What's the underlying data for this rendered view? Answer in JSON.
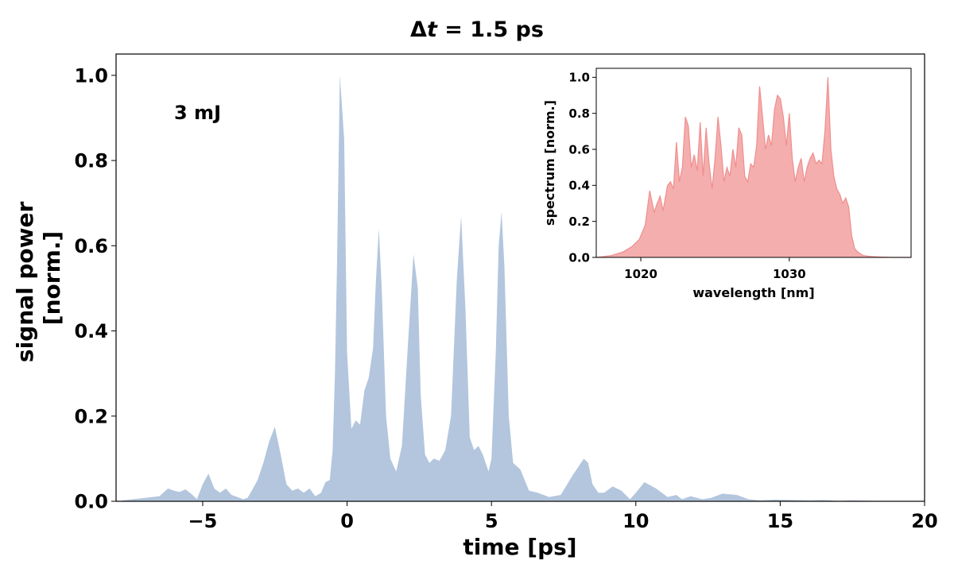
{
  "chart_data": [
    {
      "type": "area",
      "title_prefix": "Δ",
      "title_var": "t",
      "title_suffix": " = 1.5 ps",
      "xlabel": "time [ps]",
      "ylabel_line1": "signal power",
      "ylabel_line2": "[norm.]",
      "annotation": "3 mJ",
      "xlim": [
        -8,
        20
      ],
      "ylim": [
        0,
        1.05
      ],
      "xticks": [
        -5,
        0,
        5,
        10,
        15,
        20
      ],
      "xtick_labels": [
        "−5",
        "0",
        "5",
        "10",
        "15",
        "20"
      ],
      "yticks": [
        0.0,
        0.2,
        0.4,
        0.6,
        0.8,
        1.0
      ],
      "ytick_labels": [
        "0.0",
        "0.2",
        "0.4",
        "0.6",
        "0.8",
        "1.0"
      ],
      "fill_color": "#b3c6de",
      "series": [
        {
          "name": "signal power",
          "x": [
            -7.8,
            -7.0,
            -6.5,
            -6.2,
            -6.0,
            -5.8,
            -5.6,
            -5.4,
            -5.2,
            -5.0,
            -4.8,
            -4.6,
            -4.4,
            -4.2,
            -4.0,
            -3.8,
            -3.6,
            -3.45,
            -3.3,
            -3.1,
            -2.9,
            -2.7,
            -2.5,
            -2.3,
            -2.1,
            -1.9,
            -1.7,
            -1.5,
            -1.3,
            -1.1,
            -0.9,
            -0.75,
            -0.6,
            -0.5,
            -0.42,
            -0.35,
            -0.25,
            -0.1,
            0.0,
            0.15,
            0.3,
            0.45,
            0.6,
            0.75,
            0.9,
            1.0,
            1.1,
            1.2,
            1.35,
            1.5,
            1.7,
            1.9,
            2.1,
            2.3,
            2.45,
            2.55,
            2.7,
            2.85,
            3.0,
            3.2,
            3.4,
            3.6,
            3.8,
            3.95,
            4.1,
            4.25,
            4.4,
            4.55,
            4.7,
            4.9,
            5.0,
            5.15,
            5.25,
            5.35,
            5.45,
            5.6,
            5.75,
            6.0,
            6.3,
            6.6,
            7.0,
            7.4,
            7.8,
            8.0,
            8.2,
            8.35,
            8.5,
            8.7,
            8.9,
            9.2,
            9.5,
            9.8,
            10.0,
            10.3,
            10.7,
            11.1,
            11.4,
            11.6,
            11.9,
            12.3,
            12.6,
            13.0,
            13.5,
            13.9,
            14.3,
            14.8,
            15.5,
            16.0,
            16.5,
            17.0,
            17.5,
            18.3
          ],
          "y": [
            0.002,
            0.008,
            0.012,
            0.03,
            0.025,
            0.022,
            0.028,
            0.018,
            0.005,
            0.04,
            0.065,
            0.03,
            0.02,
            0.03,
            0.015,
            0.01,
            0.005,
            0.008,
            0.025,
            0.05,
            0.09,
            0.14,
            0.175,
            0.11,
            0.04,
            0.025,
            0.03,
            0.02,
            0.03,
            0.012,
            0.02,
            0.045,
            0.05,
            0.12,
            0.3,
            0.55,
            1.0,
            0.85,
            0.35,
            0.17,
            0.19,
            0.18,
            0.26,
            0.29,
            0.36,
            0.52,
            0.64,
            0.5,
            0.2,
            0.1,
            0.07,
            0.13,
            0.36,
            0.58,
            0.5,
            0.25,
            0.11,
            0.09,
            0.1,
            0.095,
            0.12,
            0.2,
            0.52,
            0.67,
            0.45,
            0.15,
            0.12,
            0.13,
            0.11,
            0.07,
            0.1,
            0.35,
            0.6,
            0.68,
            0.55,
            0.2,
            0.09,
            0.075,
            0.025,
            0.02,
            0.01,
            0.015,
            0.06,
            0.08,
            0.1,
            0.09,
            0.04,
            0.02,
            0.02,
            0.035,
            0.025,
            0.005,
            0.02,
            0.045,
            0.03,
            0.01,
            0.015,
            0.005,
            0.012,
            0.005,
            0.008,
            0.018,
            0.015,
            0.005,
            0.002,
            0.004,
            0.003,
            0.002,
            0.003,
            0.001,
            0.002,
            0.001
          ]
        }
      ]
    },
    {
      "type": "area",
      "xlabel": "wavelength [nm]",
      "ylabel": "spectrum [norm.]",
      "xlim": [
        1017,
        1038.2
      ],
      "ylim": [
        0,
        1.05
      ],
      "xticks": [
        1020,
        1030
      ],
      "xtick_labels": [
        "1020",
        "1030"
      ],
      "yticks": [
        0.0,
        0.2,
        0.4,
        0.6,
        0.8,
        1.0
      ],
      "ytick_labels": [
        "0.0",
        "0.2",
        "0.4",
        "0.6",
        "0.8",
        "1.0"
      ],
      "fill_color": "#f4aeae",
      "line_color": "#f08e8e",
      "series": [
        {
          "name": "spectrum",
          "x": [
            1017.0,
            1018.0,
            1018.8,
            1019.4,
            1019.9,
            1020.3,
            1020.6,
            1020.9,
            1021.1,
            1021.3,
            1021.5,
            1021.8,
            1022.0,
            1022.2,
            1022.4,
            1022.6,
            1022.8,
            1023.0,
            1023.2,
            1023.4,
            1023.6,
            1023.8,
            1024.0,
            1024.2,
            1024.4,
            1024.6,
            1024.8,
            1025.0,
            1025.2,
            1025.4,
            1025.6,
            1025.8,
            1026.0,
            1026.2,
            1026.4,
            1026.6,
            1026.8,
            1027.0,
            1027.2,
            1027.4,
            1027.6,
            1027.8,
            1028.0,
            1028.2,
            1028.4,
            1028.6,
            1028.8,
            1029.0,
            1029.2,
            1029.4,
            1029.6,
            1029.8,
            1030.0,
            1030.2,
            1030.4,
            1030.6,
            1030.8,
            1031.0,
            1031.2,
            1031.4,
            1031.6,
            1031.8,
            1032.0,
            1032.2,
            1032.4,
            1032.6,
            1032.8,
            1033.0,
            1033.2,
            1033.4,
            1033.6,
            1033.8,
            1034.0,
            1034.2,
            1034.4,
            1034.6,
            1034.8,
            1035.0,
            1035.5,
            1036.2,
            1037.0,
            1038.2
          ],
          "y": [
            0.0,
            0.01,
            0.03,
            0.06,
            0.1,
            0.18,
            0.37,
            0.25,
            0.3,
            0.34,
            0.26,
            0.4,
            0.42,
            0.38,
            0.64,
            0.42,
            0.5,
            0.78,
            0.73,
            0.5,
            0.57,
            0.48,
            0.75,
            0.45,
            0.72,
            0.52,
            0.38,
            0.55,
            0.78,
            0.62,
            0.42,
            0.5,
            0.45,
            0.6,
            0.5,
            0.72,
            0.68,
            0.45,
            0.42,
            0.52,
            0.5,
            0.62,
            0.95,
            0.78,
            0.6,
            0.68,
            0.62,
            0.82,
            0.9,
            0.88,
            0.78,
            0.62,
            0.8,
            0.55,
            0.42,
            0.5,
            0.55,
            0.42,
            0.5,
            0.55,
            0.58,
            0.52,
            0.54,
            0.52,
            0.7,
            1.0,
            0.6,
            0.45,
            0.38,
            0.35,
            0.3,
            0.33,
            0.28,
            0.12,
            0.05,
            0.03,
            0.02,
            0.01,
            0.005,
            0.002,
            0.0,
            0.0
          ]
        }
      ]
    }
  ]
}
